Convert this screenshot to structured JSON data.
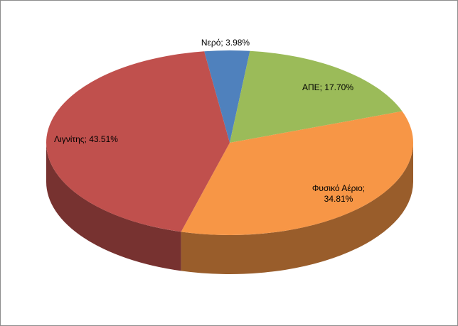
{
  "chart_data": {
    "type": "pie",
    "three_d": true,
    "categories": [
      "Νερό",
      "ΑΠΕ",
      "Φυσικό Αέριο",
      "Λιγνίτης"
    ],
    "values": [
      3.98,
      17.7,
      34.81,
      43.51
    ],
    "value_labels": [
      "Νερό; 3.98%",
      "ΑΠΕ; 17.70%",
      "Φυσικό Αέριο; 34.81%",
      "Λιγνίτης; 43.51%"
    ],
    "colors": [
      "#4f81bd",
      "#9bbb59",
      "#f79646",
      "#c0504d"
    ]
  }
}
